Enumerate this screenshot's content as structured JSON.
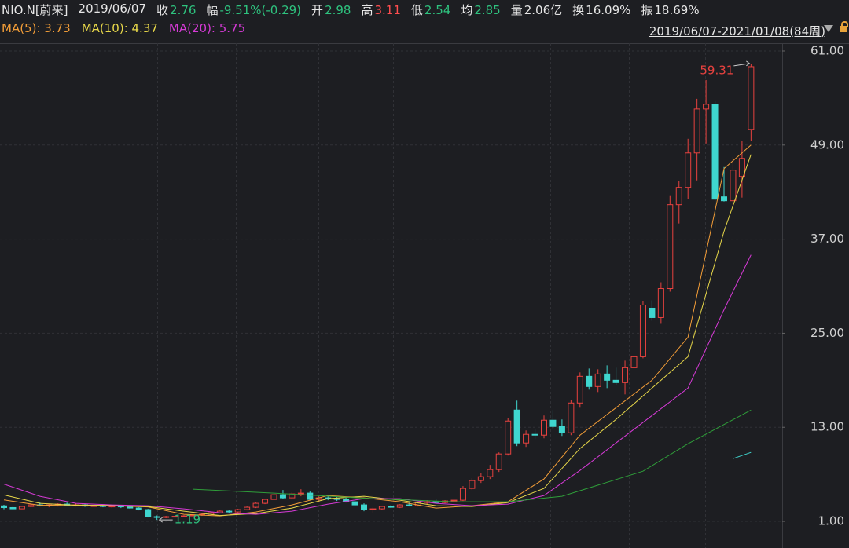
{
  "chart_data": {
    "type": "candlestick",
    "header": [
      {
        "value": "NIO.N[蔚来]",
        "color": "#e6e6e6"
      },
      {
        "value": "2019/06/07",
        "color": "#e6e6e6"
      },
      {
        "label": "收",
        "value": "2.76",
        "color": "#2ec27e"
      },
      {
        "label": "幅",
        "value": "-9.51%(-0.29)",
        "color": "#2ec27e"
      },
      {
        "label": "开",
        "value": "2.98",
        "color": "#2ec27e"
      },
      {
        "label": "高",
        "value": "3.11",
        "color": "#ff4d4f"
      },
      {
        "label": "低",
        "value": "2.54",
        "color": "#2ec27e"
      },
      {
        "label": "均",
        "value": "2.85",
        "color": "#2ec27e"
      },
      {
        "label": "量",
        "value": "2.06亿",
        "color": "#e6e6e6"
      },
      {
        "label": "换",
        "value": "16.09%",
        "color": "#e6e6e6"
      },
      {
        "label": "振",
        "value": "18.69%",
        "color": "#e6e6e6"
      }
    ],
    "range_label": "2019/06/07-2021/01/08(84周)",
    "up_color": "#e8423f",
    "down_color": "#3fd6cf",
    "ohlc": [
      [
        2.98,
        3.11,
        2.54,
        2.76
      ],
      [
        2.76,
        2.95,
        2.5,
        2.6
      ],
      [
        2.6,
        3.0,
        2.55,
        2.9
      ],
      [
        2.9,
        3.3,
        2.8,
        3.1
      ],
      [
        3.1,
        3.4,
        2.9,
        3.0
      ],
      [
        3.0,
        3.2,
        2.8,
        3.1
      ],
      [
        3.1,
        3.3,
        2.9,
        3.2
      ],
      [
        3.2,
        3.4,
        2.95,
        3.05
      ],
      [
        3.05,
        3.3,
        2.9,
        3.1
      ],
      [
        3.1,
        3.2,
        2.85,
        2.95
      ],
      [
        2.95,
        3.1,
        2.8,
        3.0
      ],
      [
        3.0,
        3.15,
        2.8,
        2.9
      ],
      [
        2.9,
        3.1,
        2.7,
        2.95
      ],
      [
        2.95,
        3.05,
        2.7,
        2.85
      ],
      [
        2.85,
        3.0,
        2.6,
        2.7
      ],
      [
        2.7,
        2.8,
        2.4,
        2.5
      ],
      [
        2.5,
        2.6,
        1.5,
        1.6
      ],
      [
        1.6,
        1.75,
        1.19,
        1.5
      ],
      [
        1.5,
        1.7,
        1.4,
        1.6
      ],
      [
        1.6,
        1.75,
        1.5,
        1.65
      ],
      [
        1.65,
        1.8,
        1.55,
        1.7
      ],
      [
        1.7,
        1.9,
        1.6,
        1.8
      ],
      [
        1.8,
        2.0,
        1.7,
        1.9
      ],
      [
        1.9,
        2.2,
        1.8,
        2.1
      ],
      [
        2.1,
        2.4,
        2.0,
        2.3
      ],
      [
        2.3,
        2.5,
        2.1,
        2.2
      ],
      [
        2.2,
        2.6,
        2.1,
        2.5
      ],
      [
        2.5,
        2.9,
        2.4,
        2.8
      ],
      [
        2.8,
        3.4,
        2.7,
        3.3
      ],
      [
        3.3,
        3.9,
        3.2,
        3.8
      ],
      [
        3.8,
        4.6,
        3.6,
        4.4
      ],
      [
        4.4,
        5.0,
        3.9,
        4.0
      ],
      [
        4.0,
        4.7,
        3.8,
        4.5
      ],
      [
        4.5,
        5.1,
        4.2,
        4.6
      ],
      [
        4.6,
        4.8,
        3.7,
        3.8
      ],
      [
        3.8,
        4.2,
        3.5,
        4.0
      ],
      [
        4.0,
        4.3,
        3.7,
        3.9
      ],
      [
        3.9,
        4.1,
        3.6,
        3.8
      ],
      [
        3.8,
        4.0,
        3.4,
        3.5
      ],
      [
        3.5,
        3.7,
        3.0,
        3.1
      ],
      [
        3.1,
        3.3,
        2.3,
        2.5
      ],
      [
        2.5,
        2.8,
        2.11,
        2.6
      ],
      [
        2.6,
        3.0,
        2.5,
        2.9
      ],
      [
        2.9,
        3.1,
        2.7,
        2.8
      ],
      [
        2.8,
        3.2,
        2.7,
        3.1
      ],
      [
        3.1,
        3.4,
        2.9,
        3.0
      ],
      [
        3.0,
        3.5,
        2.9,
        3.4
      ],
      [
        3.4,
        3.7,
        3.2,
        3.5
      ],
      [
        3.5,
        3.8,
        3.3,
        3.4
      ],
      [
        3.4,
        3.7,
        3.3,
        3.6
      ],
      [
        3.6,
        4.0,
        3.5,
        3.7
      ],
      [
        3.7,
        5.5,
        3.6,
        5.2
      ],
      [
        5.2,
        6.5,
        5.0,
        6.2
      ],
      [
        6.2,
        7.2,
        5.9,
        6.7
      ],
      [
        6.7,
        8.2,
        6.4,
        7.6
      ],
      [
        7.6,
        9.8,
        7.3,
        9.6
      ],
      [
        9.6,
        14.2,
        9.4,
        13.8
      ],
      [
        15.2,
        16.4,
        10.6,
        11.0
      ],
      [
        11.0,
        12.6,
        10.5,
        12.1
      ],
      [
        12.1,
        12.8,
        11.5,
        12.0
      ],
      [
        12.0,
        14.5,
        11.6,
        13.9
      ],
      [
        13.9,
        15.2,
        12.8,
        13.1
      ],
      [
        13.1,
        14.0,
        11.9,
        12.3
      ],
      [
        12.3,
        16.5,
        12.0,
        16.1
      ],
      [
        16.1,
        20.0,
        15.5,
        19.5
      ],
      [
        19.5,
        20.5,
        17.8,
        18.2
      ],
      [
        18.2,
        20.4,
        17.5,
        19.8
      ],
      [
        19.8,
        20.9,
        18.0,
        19.0
      ],
      [
        19.0,
        20.6,
        18.4,
        18.7
      ],
      [
        18.7,
        21.5,
        17.2,
        20.6
      ],
      [
        20.6,
        22.3,
        20.4,
        22.0
      ],
      [
        22.0,
        29.1,
        21.8,
        28.6
      ],
      [
        28.2,
        29.2,
        26.6,
        27.0
      ],
      [
        27.0,
        31.5,
        26.2,
        30.7
      ],
      [
        30.7,
        42.5,
        30.3,
        41.4
      ],
      [
        41.4,
        44.4,
        39.0,
        43.6
      ],
      [
        43.6,
        49.8,
        42.1,
        48.0
      ],
      [
        48.0,
        54.9,
        44.5,
        53.6
      ],
      [
        53.6,
        57.3,
        49.2,
        54.2
      ],
      [
        54.2,
        54.6,
        38.4,
        42.1
      ],
      [
        42.4,
        46.2,
        41.8,
        41.9
      ],
      [
        41.9,
        47.5,
        40.8,
        45.8
      ],
      [
        45.0,
        49.5,
        42.3,
        47.3
      ],
      [
        51.0,
        59.31,
        49.5,
        59.0
      ]
    ],
    "series": [
      {
        "name": "MA(5)",
        "legend_value": 3.73,
        "color": "#f29d38",
        "x": [
          0,
          4,
          8,
          12,
          16,
          20,
          24,
          28,
          32,
          36,
          40,
          44,
          48,
          52,
          56,
          60,
          64,
          68,
          72,
          76,
          80,
          83
        ],
        "values": [
          3.73,
          3.05,
          3.1,
          3.0,
          2.85,
          1.9,
          1.7,
          2.2,
          3.1,
          4.3,
          4.0,
          3.5,
          2.7,
          3.0,
          3.5,
          6.4,
          12.0,
          15.5,
          19.0,
          24.5,
          46.0,
          49.0
        ]
      },
      {
        "name": "MA(10)",
        "legend_value": 4.37,
        "color": "#e8d84a",
        "x": [
          0,
          4,
          8,
          12,
          16,
          20,
          24,
          28,
          32,
          36,
          40,
          44,
          48,
          52,
          56,
          60,
          64,
          68,
          72,
          76,
          80,
          83
        ],
        "values": [
          4.37,
          3.3,
          3.05,
          3.05,
          2.9,
          2.3,
          1.75,
          2.0,
          2.7,
          3.9,
          4.2,
          3.7,
          3.0,
          2.9,
          3.4,
          5.2,
          10.3,
          14.0,
          18.0,
          22.0,
          38.0,
          47.8
        ]
      },
      {
        "name": "MA(20)",
        "legend_value": 5.75,
        "color": "#d63ad6",
        "x": [
          0,
          4,
          8,
          12,
          16,
          20,
          24,
          28,
          32,
          36,
          40,
          44,
          48,
          52,
          56,
          60,
          64,
          68,
          72,
          76,
          80,
          83
        ],
        "values": [
          5.75,
          4.2,
          3.3,
          3.1,
          3.0,
          2.6,
          2.1,
          1.9,
          2.3,
          3.2,
          3.9,
          3.9,
          3.3,
          3.0,
          3.2,
          4.3,
          7.5,
          11.0,
          14.5,
          18.0,
          28.0,
          35.0
        ]
      },
      {
        "color": "#2f9e3a",
        "x": [
          21,
          30,
          41,
          50,
          56,
          62,
          71,
          76,
          83
        ],
        "values": [
          5.1,
          4.6,
          3.9,
          3.5,
          3.5,
          4.2,
          7.4,
          10.9,
          15.2
        ]
      },
      {
        "color": "#3fd6cf",
        "x": [
          81,
          83
        ],
        "values": [
          9.0,
          9.8
        ]
      }
    ],
    "max_label": 59.31,
    "min_label": 1.19,
    "ylim": [
      -2.4,
      62
    ],
    "yticks": [
      {
        "value": 1,
        "label": "1.00"
      },
      {
        "value": 13,
        "label": "13.00"
      },
      {
        "value": 25,
        "label": "25.00"
      },
      {
        "value": 37,
        "label": "37.00"
      },
      {
        "value": 49,
        "label": "49.00"
      },
      {
        "value": 61,
        "label": "61.00"
      }
    ],
    "grid": true
  }
}
